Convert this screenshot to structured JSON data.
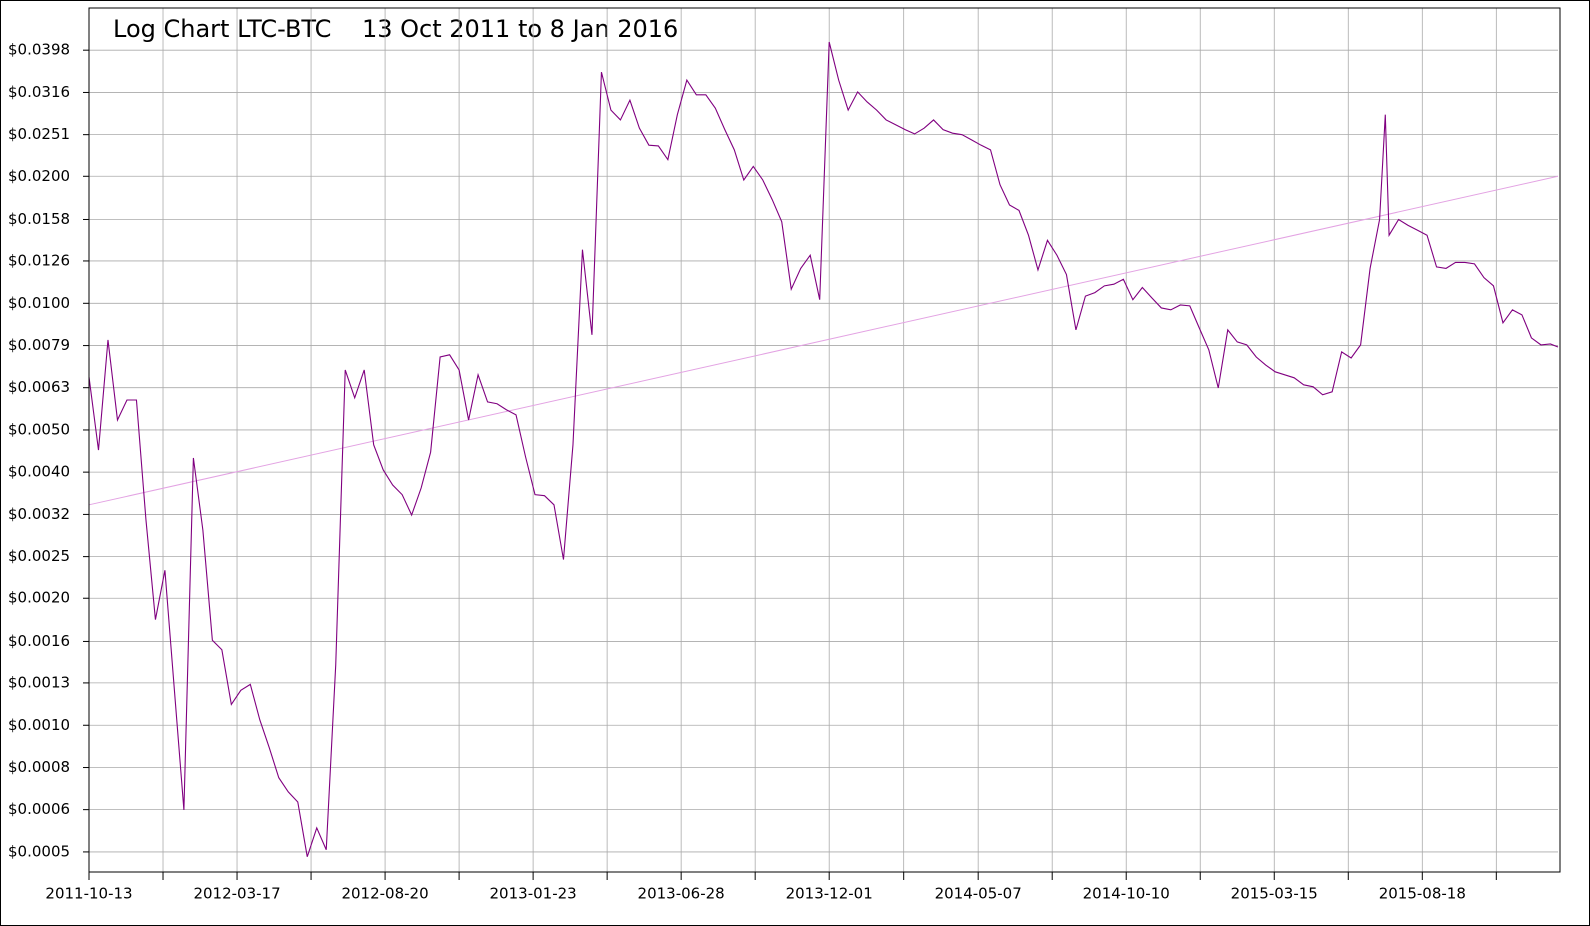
{
  "chart_data": {
    "type": "line",
    "title": "Log Chart LTC-BTC    13 Oct 2011 to 8 Jan 2016",
    "color": "#800080",
    "log_y": true,
    "grid": true,
    "xlim": [
      "2011-10-13",
      "2016-01-08"
    ],
    "xticks": [
      "2011-10-13",
      "2012-03-17",
      "2012-08-20",
      "2013-01-23",
      "2013-06-28",
      "2013-12-01",
      "2014-05-07",
      "2014-10-10",
      "2015-03-15",
      "2015-08-18"
    ],
    "ylim": [
      0.000449,
      0.0501
    ],
    "yticks": [
      {
        "value": 0.000501,
        "label": "$0.0005"
      },
      {
        "value": 0.000631,
        "label": "$0.0006"
      },
      {
        "value": 0.000794,
        "label": "$0.0008"
      },
      {
        "value": 0.001,
        "label": "$0.0010"
      },
      {
        "value": 0.00126,
        "label": "$0.0013"
      },
      {
        "value": 0.00158,
        "label": "$0.0016"
      },
      {
        "value": 0.002,
        "label": "$0.0020"
      },
      {
        "value": 0.00251,
        "label": "$0.0025"
      },
      {
        "value": 0.00316,
        "label": "$0.0032"
      },
      {
        "value": 0.00398,
        "label": "$0.0040"
      },
      {
        "value": 0.00501,
        "label": "$0.0050"
      },
      {
        "value": 0.00631,
        "label": "$0.0063"
      },
      {
        "value": 0.00794,
        "label": "$0.0079"
      },
      {
        "value": 0.01,
        "label": "$0.0100"
      },
      {
        "value": 0.0126,
        "label": "$0.0126"
      },
      {
        "value": 0.0158,
        "label": "$0.0158"
      },
      {
        "value": 0.02,
        "label": "$0.0200"
      },
      {
        "value": 0.0251,
        "label": "$0.0251"
      },
      {
        "value": 0.0316,
        "label": "$0.0316"
      },
      {
        "value": 0.0398,
        "label": "$0.0398"
      }
    ],
    "trend_line": {
      "color": "#e3a3e3",
      "x": [
        "2011-10-13",
        "2016-01-08"
      ],
      "values": [
        0.00333,
        0.02
      ]
    },
    "x": [
      "2011-10-13",
      "2011-10-23",
      "2011-11-02",
      "2011-11-12",
      "2011-11-22",
      "2011-12-02",
      "2011-12-12",
      "2011-12-22",
      "2012-01-01",
      "2012-01-11",
      "2012-01-21",
      "2012-01-31",
      "2012-02-10",
      "2012-02-20",
      "2012-03-01",
      "2012-03-11",
      "2012-03-21",
      "2012-03-31",
      "2012-04-10",
      "2012-04-20",
      "2012-04-30",
      "2012-05-10",
      "2012-05-20",
      "2012-05-30",
      "2012-06-09",
      "2012-06-19",
      "2012-06-29",
      "2012-07-09",
      "2012-07-19",
      "2012-07-29",
      "2012-08-08",
      "2012-08-18",
      "2012-08-28",
      "2012-09-07",
      "2012-09-17",
      "2012-09-27",
      "2012-10-07",
      "2012-10-17",
      "2012-10-27",
      "2012-11-06",
      "2012-11-16",
      "2012-11-26",
      "2012-12-06",
      "2012-12-16",
      "2012-12-26",
      "2013-01-05",
      "2013-01-15",
      "2013-01-25",
      "2013-02-04",
      "2013-02-14",
      "2013-02-24",
      "2013-03-06",
      "2013-03-16",
      "2013-03-26",
      "2013-04-05",
      "2013-04-15",
      "2013-04-25",
      "2013-05-05",
      "2013-05-15",
      "2013-05-25",
      "2013-06-04",
      "2013-06-14",
      "2013-06-24",
      "2013-07-04",
      "2013-07-14",
      "2013-07-24",
      "2013-08-03",
      "2013-08-13",
      "2013-08-23",
      "2013-09-02",
      "2013-09-12",
      "2013-09-22",
      "2013-10-02",
      "2013-10-12",
      "2013-10-22",
      "2013-11-01",
      "2013-11-11",
      "2013-11-21",
      "2013-12-01",
      "2013-12-11",
      "2013-12-21",
      "2013-12-31",
      "2014-01-10",
      "2014-01-20",
      "2014-01-30",
      "2014-02-09",
      "2014-02-19",
      "2014-03-01",
      "2014-03-11",
      "2014-03-21",
      "2014-03-31",
      "2014-04-10",
      "2014-04-20",
      "2014-04-30",
      "2014-05-10",
      "2014-05-20",
      "2014-05-30",
      "2014-06-09",
      "2014-06-19",
      "2014-06-29",
      "2014-07-09",
      "2014-07-19",
      "2014-07-29",
      "2014-08-08",
      "2014-08-18",
      "2014-08-28",
      "2014-09-07",
      "2014-09-17",
      "2014-09-27",
      "2014-10-07",
      "2014-10-17",
      "2014-10-27",
      "2014-11-06",
      "2014-11-16",
      "2014-11-26",
      "2014-12-06",
      "2014-12-16",
      "2014-12-26",
      "2015-01-05",
      "2015-01-15",
      "2015-01-25",
      "2015-02-04",
      "2015-02-14",
      "2015-02-24",
      "2015-03-06",
      "2015-03-16",
      "2015-03-26",
      "2015-04-05",
      "2015-04-15",
      "2015-04-25",
      "2015-05-05",
      "2015-05-15",
      "2015-05-25",
      "2015-06-04",
      "2015-06-14",
      "2015-06-24",
      "2015-07-04",
      "2015-07-10",
      "2015-07-14",
      "2015-07-24",
      "2015-08-03",
      "2015-08-13",
      "2015-08-23",
      "2015-09-02",
      "2015-09-12",
      "2015-09-22",
      "2015-10-02",
      "2015-10-12",
      "2015-10-22",
      "2015-11-01",
      "2015-11-11",
      "2015-11-21",
      "2015-12-01",
      "2015-12-11",
      "2015-12-21",
      "2015-12-31",
      "2016-01-08"
    ],
    "values": [
      0.00669,
      0.00449,
      0.00819,
      0.00529,
      0.0059,
      0.0059,
      0.00307,
      0.00178,
      0.00233,
      0.00121,
      0.00063,
      0.0043,
      0.0029,
      0.00159,
      0.00151,
      0.00112,
      0.00121,
      0.00125,
      0.00103,
      0.000884,
      0.000751,
      0.000695,
      0.000658,
      0.000488,
      0.000571,
      0.000507,
      0.00139,
      0.00695,
      0.00597,
      0.00695,
      0.00462,
      0.00403,
      0.00371,
      0.00352,
      0.00315,
      0.00365,
      0.00444,
      0.00746,
      0.00755,
      0.00695,
      0.00529,
      0.00677,
      0.00584,
      0.00578,
      0.00559,
      0.00544,
      0.00433,
      0.00352,
      0.0035,
      0.00333,
      0.00247,
      0.00462,
      0.0134,
      0.00842,
      0.0353,
      0.0287,
      0.0272,
      0.0303,
      0.026,
      0.0237,
      0.0236,
      0.0219,
      0.028,
      0.0338,
      0.0312,
      0.0312,
      0.029,
      0.0258,
      0.0231,
      0.0196,
      0.0211,
      0.0196,
      0.0176,
      0.0156,
      0.0108,
      0.0121,
      0.013,
      0.0102,
      0.0416,
      0.0338,
      0.0287,
      0.0317,
      0.03,
      0.0287,
      0.0272,
      0.0265,
      0.0258,
      0.0252,
      0.026,
      0.0272,
      0.0258,
      0.0253,
      0.0251,
      0.0244,
      0.0237,
      0.0231,
      0.0191,
      0.0171,
      0.0166,
      0.0145,
      0.012,
      0.0141,
      0.013,
      0.0117,
      0.00865,
      0.0104,
      0.0106,
      0.011,
      0.0111,
      0.0114,
      0.0102,
      0.0109,
      0.0103,
      0.00975,
      0.00965,
      0.00991,
      0.00986,
      0.00874,
      0.00776,
      0.0063,
      0.00865,
      0.0081,
      0.00797,
      0.00746,
      0.00714,
      0.00688,
      0.00677,
      0.00666,
      0.00641,
      0.00634,
      0.00607,
      0.00617,
      0.00767,
      0.00742,
      0.00797,
      0.0121,
      0.0158,
      0.028,
      0.0145,
      0.0158,
      0.0153,
      0.0149,
      0.0145,
      0.0122,
      0.0121,
      0.0125,
      0.0125,
      0.0124,
      0.0115,
      0.011,
      0.00899,
      0.00965,
      0.00939,
      0.00828,
      0.00797,
      0.00801,
      0.00788
    ]
  }
}
